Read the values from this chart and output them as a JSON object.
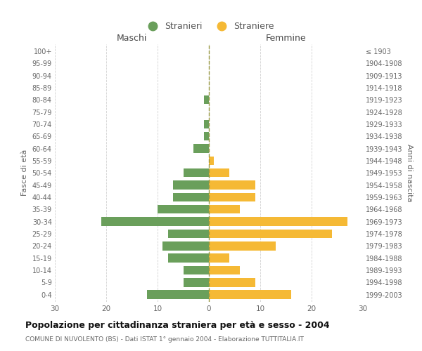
{
  "age_groups": [
    "0-4",
    "5-9",
    "10-14",
    "15-19",
    "20-24",
    "25-29",
    "30-34",
    "35-39",
    "40-44",
    "45-49",
    "50-54",
    "55-59",
    "60-64",
    "65-69",
    "70-74",
    "75-79",
    "80-84",
    "85-89",
    "90-94",
    "95-99",
    "100+"
  ],
  "birth_years": [
    "1999-2003",
    "1994-1998",
    "1989-1993",
    "1984-1988",
    "1979-1983",
    "1974-1978",
    "1969-1973",
    "1964-1968",
    "1959-1963",
    "1954-1958",
    "1949-1953",
    "1944-1948",
    "1939-1943",
    "1934-1938",
    "1929-1933",
    "1924-1928",
    "1919-1923",
    "1914-1918",
    "1909-1913",
    "1904-1908",
    "≤ 1903"
  ],
  "males": [
    12,
    5,
    5,
    8,
    9,
    8,
    21,
    10,
    7,
    7,
    5,
    0,
    3,
    1,
    1,
    0,
    1,
    0,
    0,
    0,
    0
  ],
  "females": [
    16,
    9,
    6,
    4,
    13,
    24,
    27,
    6,
    9,
    9,
    4,
    1,
    0,
    0,
    0,
    0,
    0,
    0,
    0,
    0,
    0
  ],
  "male_color": "#6a9f5b",
  "female_color": "#f5b935",
  "background_color": "#ffffff",
  "grid_color": "#cccccc",
  "title": "Popolazione per cittadinanza straniera per età e sesso - 2004",
  "subtitle": "COMUNE DI NUVOLENTO (BS) - Dati ISTAT 1° gennaio 2004 - Elaborazione TUTTITALIA.IT",
  "left_label": "Maschi",
  "right_label": "Femmine",
  "ylabel_left": "Fasce di età",
  "ylabel_right": "Anni di nascita",
  "legend_male": "Stranieri",
  "legend_female": "Straniere",
  "xlim": 30
}
